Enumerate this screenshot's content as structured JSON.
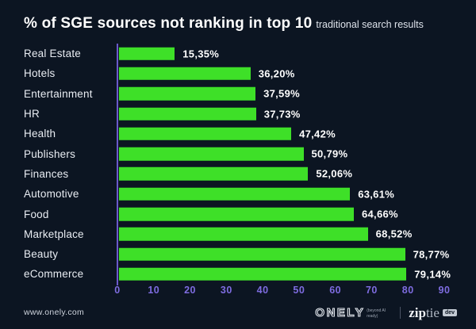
{
  "header": {
    "title": "% of SGE sources not ranking in top 10",
    "subtitle": "traditional search results"
  },
  "chart_data": {
    "type": "bar",
    "orientation": "horizontal",
    "title": "% of SGE sources not ranking in top 10 traditional search results",
    "categories": [
      "Real Estate",
      "Hotels",
      "Entertainment",
      "HR",
      "Health",
      "Publishers",
      "Finances",
      "Automotive",
      "Food",
      "Marketplace",
      "Beauty",
      "eCommerce"
    ],
    "values": [
      15.35,
      36.2,
      37.59,
      37.73,
      47.42,
      50.79,
      52.06,
      63.61,
      64.66,
      68.52,
      78.77,
      79.14
    ],
    "value_labels": [
      "15,35%",
      "36,20%",
      "37,59%",
      "37,73%",
      "47,42%",
      "50,79%",
      "52,06%",
      "63,61%",
      "64,66%",
      "68,52%",
      "78,77%",
      "79,14%"
    ],
    "xlabel": "",
    "ylabel": "",
    "xlim": [
      0,
      90
    ],
    "x_ticks": [
      0,
      10,
      20,
      30,
      40,
      50,
      60,
      70,
      80,
      90
    ],
    "grid": false,
    "legend": "none"
  },
  "colors": {
    "background": "#0c1522",
    "bar_green": "#3ee028",
    "axis_purple": "#6b5acb",
    "tick_purple": "#7e6ce0",
    "label_white": "#e9edf3"
  },
  "footer": {
    "website": "www.onely.com",
    "onely_logo": "ONELY",
    "onely_tagline": "(beyond AI ready)",
    "ziptie_zip": "zip",
    "ziptie_tie": "tie",
    "ziptie_badge": "dev"
  }
}
